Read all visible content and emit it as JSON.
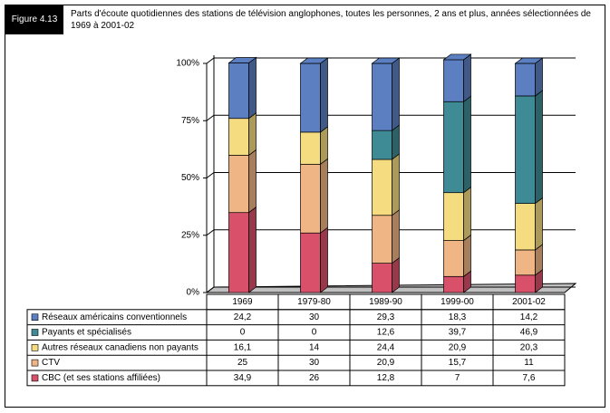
{
  "figure_label": "Figure 4.13",
  "chart_data": {
    "type": "bar",
    "stacked": true,
    "title": "Parts d'écoute quotidiennes des stations de télévision anglophones, toutes les personnes, 2 ans et plus, années sélectionnées de 1969 à 2001-02",
    "categories": [
      "1969",
      "1979-80",
      "1989-90",
      "1999-00",
      "2001-02"
    ],
    "series": [
      {
        "name": "Réseaux américains conventionnels",
        "color": "#5b7fc0",
        "values": [
          24.2,
          30,
          29.3,
          18.3,
          14.2
        ],
        "value_labels": [
          "24,2",
          "30",
          "29,3",
          "18,3",
          "14,2"
        ]
      },
      {
        "name": "Payants et spécialisés",
        "color": "#3f8b95",
        "values": [
          0,
          0,
          12.6,
          39.7,
          46.9
        ],
        "value_labels": [
          "0",
          "0",
          "12,6",
          "39,7",
          "46,9"
        ]
      },
      {
        "name": "Autres réseaux canadiens non payants",
        "color": "#f5dc80",
        "values": [
          16.1,
          14,
          24.4,
          20.9,
          20.3
        ],
        "value_labels": [
          "16,1",
          "14",
          "24,4",
          "20,9",
          "20,3"
        ]
      },
      {
        "name": "CTV",
        "color": "#f0b584",
        "values": [
          25,
          30,
          20.9,
          15.7,
          11
        ],
        "value_labels": [
          "25",
          "30",
          "20,9",
          "15,7",
          "11"
        ]
      },
      {
        "name": "CBC (et ses stations affiliées)",
        "color": "#d9506b",
        "values": [
          34.9,
          26,
          12.8,
          7,
          7.6
        ],
        "value_labels": [
          "34,9",
          "26",
          "12,8",
          "7",
          "7,6"
        ]
      }
    ],
    "ylim": [
      0,
      100
    ],
    "yticks": [
      {
        "value": 0,
        "label": "0%"
      },
      {
        "value": 25,
        "label": "25%"
      },
      {
        "value": 50,
        "label": "50%"
      },
      {
        "value": 75,
        "label": "75%"
      },
      {
        "value": 100,
        "label": "100%"
      }
    ],
    "grid": true
  }
}
